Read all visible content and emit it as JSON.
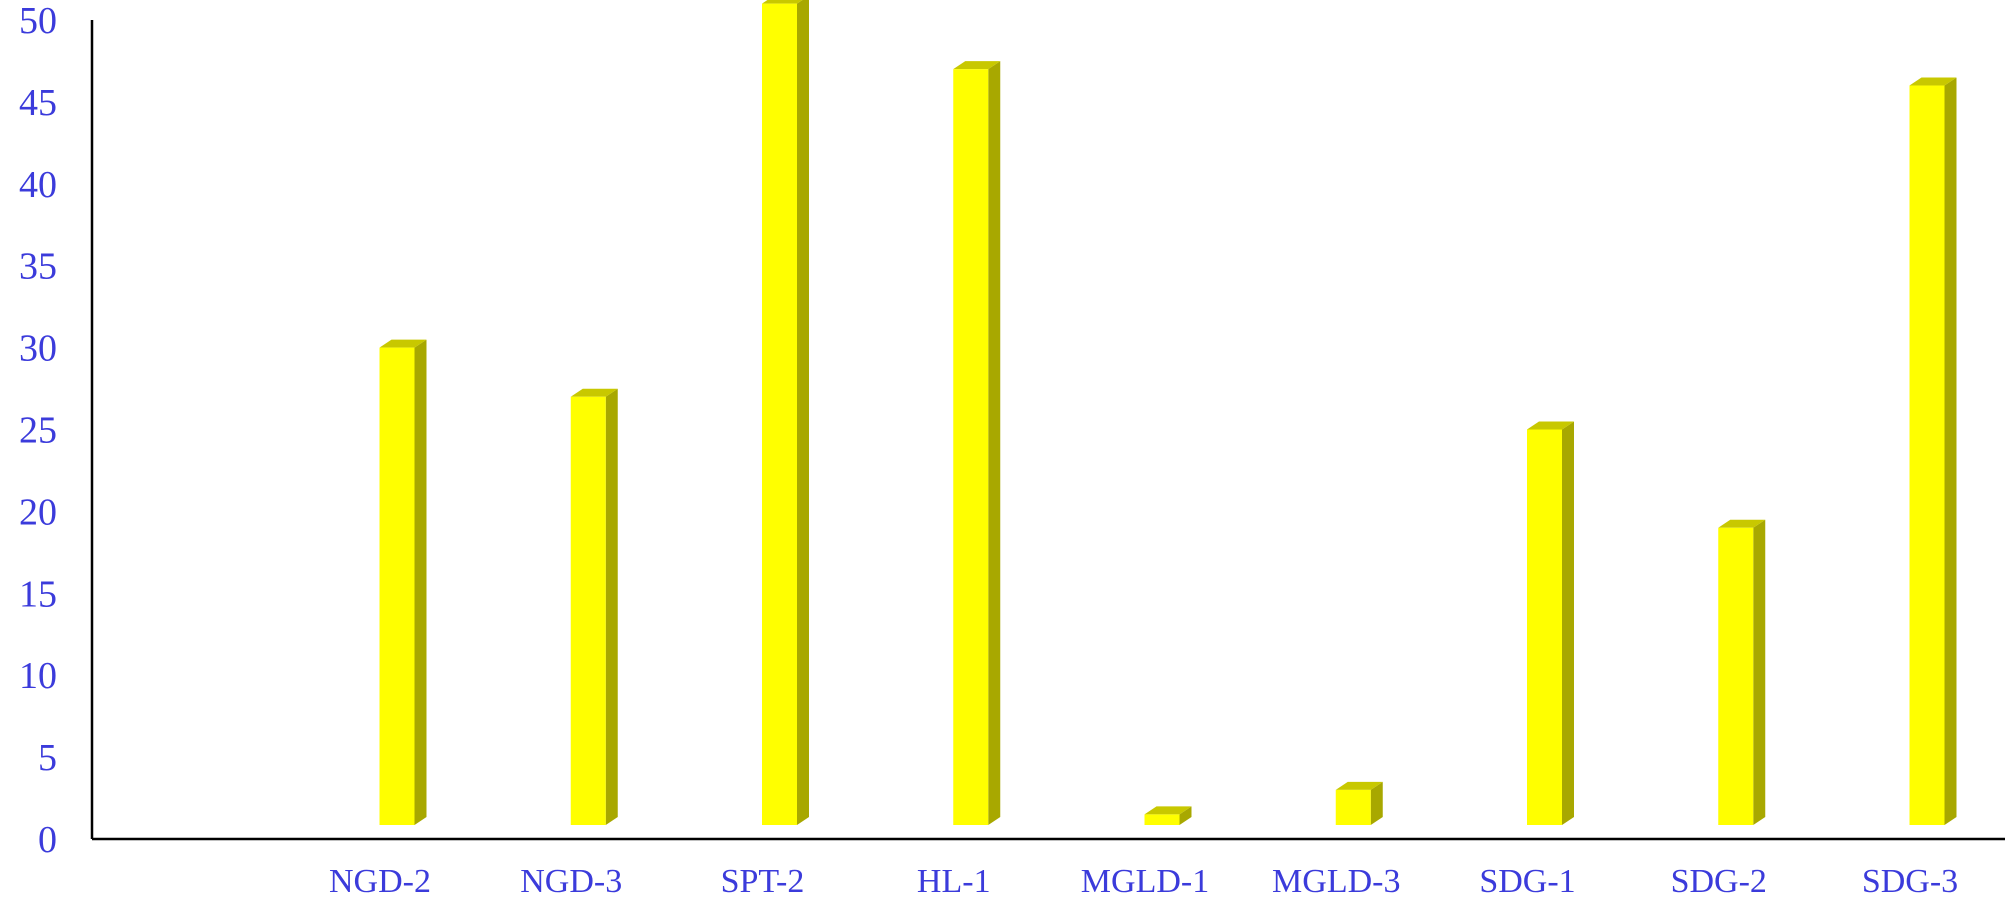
{
  "chart_data": {
    "type": "bar",
    "title": "",
    "xlabel": "",
    "ylabel": "",
    "categories": [
      "NGD-2",
      "NGD-3",
      "SPT-2",
      "HL-1",
      "MGLD-1",
      "MGLD-3",
      "SDG-1",
      "SDG-2",
      "SDG-3"
    ],
    "values": [
      30,
      27,
      51,
      47,
      1.5,
      3,
      25,
      19,
      46
    ],
    "ylim": [
      0,
      50
    ],
    "yticks": [
      0,
      5,
      10,
      15,
      20,
      25,
      30,
      35,
      40,
      45,
      50
    ],
    "grid": false,
    "legend": "none",
    "colors": {
      "bar_front": "#ffff00",
      "bar_side": "#a8a800",
      "bar_top": "#c8c800",
      "axis": "#000000",
      "tick_text": "#3b3bdb"
    }
  }
}
